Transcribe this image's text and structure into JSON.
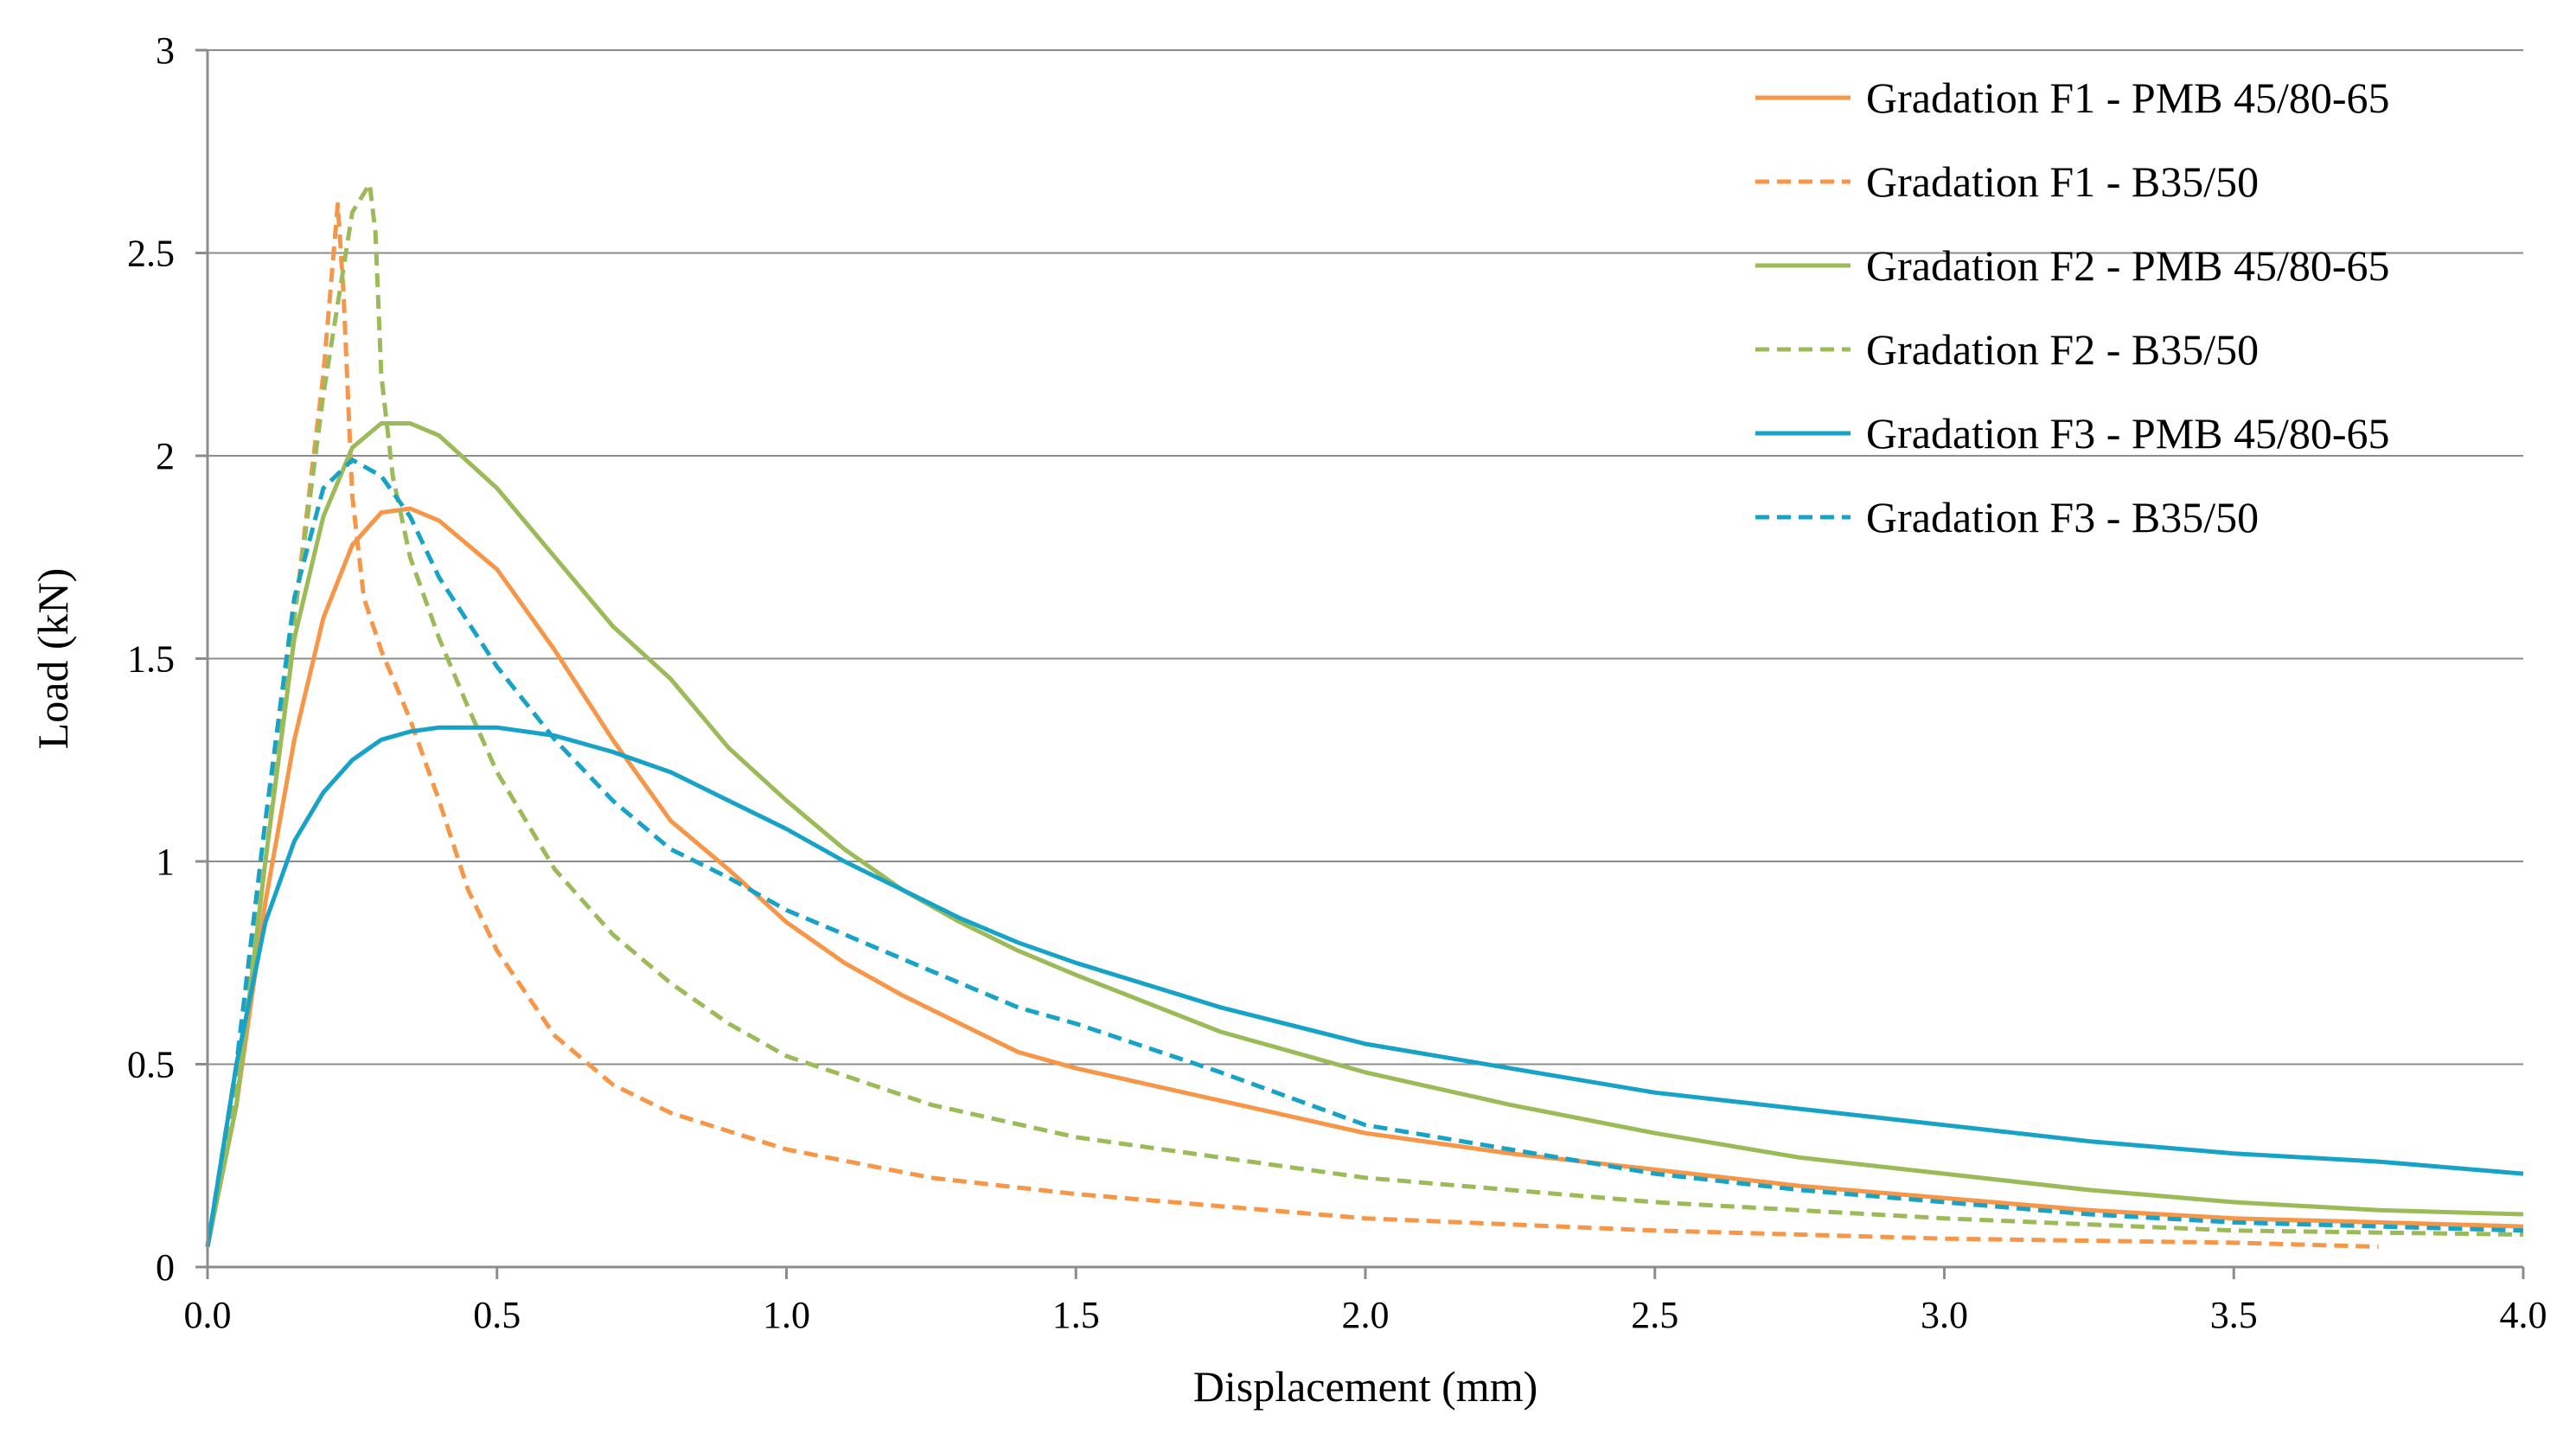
{
  "chart_data": {
    "type": "line",
    "title": "",
    "xlabel": "Displacement (mm)",
    "ylabel": "Load  (kN)",
    "xlim": [
      0,
      4.0
    ],
    "ylim": [
      0,
      3
    ],
    "x_tick_labels": [
      "0.0",
      "0.5",
      "1.0",
      "1.5",
      "2.0",
      "2.5",
      "3.0",
      "3.5",
      "4.0"
    ],
    "y_tick_labels": [
      "0",
      "0.5",
      "1",
      "1.5",
      "2",
      "2.5",
      "3"
    ],
    "grid": "horizontal",
    "legend_position": "top-right",
    "series": [
      {
        "name": "Gradation F1 - PMB  45/80-65",
        "color": "#F79646",
        "dash": "solid",
        "points": [
          [
            0,
            0.05
          ],
          [
            0.05,
            0.4
          ],
          [
            0.1,
            0.9
          ],
          [
            0.15,
            1.3
          ],
          [
            0.2,
            1.6
          ],
          [
            0.25,
            1.78
          ],
          [
            0.3,
            1.86
          ],
          [
            0.35,
            1.87
          ],
          [
            0.4,
            1.84
          ],
          [
            0.5,
            1.72
          ],
          [
            0.6,
            1.52
          ],
          [
            0.7,
            1.3
          ],
          [
            0.8,
            1.1
          ],
          [
            0.9,
            0.98
          ],
          [
            1.0,
            0.85
          ],
          [
            1.1,
            0.75
          ],
          [
            1.2,
            0.67
          ],
          [
            1.3,
            0.6
          ],
          [
            1.4,
            0.53
          ],
          [
            1.5,
            0.49
          ],
          [
            1.75,
            0.41
          ],
          [
            2.0,
            0.33
          ],
          [
            2.25,
            0.28
          ],
          [
            2.5,
            0.24
          ],
          [
            2.75,
            0.2
          ],
          [
            3.0,
            0.17
          ],
          [
            3.25,
            0.14
          ],
          [
            3.5,
            0.12
          ],
          [
            3.75,
            0.11
          ],
          [
            4.0,
            0.1
          ]
        ]
      },
      {
        "name": "Gradation F1 - B35/50",
        "color": "#F79646",
        "dash": "dashed",
        "points": [
          [
            0,
            0.05
          ],
          [
            0.05,
            0.5
          ],
          [
            0.1,
            1.0
          ],
          [
            0.15,
            1.6
          ],
          [
            0.2,
            2.2
          ],
          [
            0.225,
            2.62
          ],
          [
            0.235,
            2.4
          ],
          [
            0.25,
            1.9
          ],
          [
            0.27,
            1.65
          ],
          [
            0.3,
            1.52
          ],
          [
            0.35,
            1.35
          ],
          [
            0.4,
            1.15
          ],
          [
            0.45,
            0.93
          ],
          [
            0.5,
            0.78
          ],
          [
            0.6,
            0.57
          ],
          [
            0.7,
            0.45
          ],
          [
            0.8,
            0.38
          ],
          [
            1.0,
            0.29
          ],
          [
            1.25,
            0.22
          ],
          [
            1.5,
            0.18
          ],
          [
            1.75,
            0.15
          ],
          [
            2.0,
            0.12
          ],
          [
            2.5,
            0.09
          ],
          [
            3.0,
            0.07
          ],
          [
            3.5,
            0.06
          ],
          [
            3.75,
            0.05
          ]
        ]
      },
      {
        "name": "Gradation F2 - PMB  45/80-65",
        "color": "#9BBB59",
        "dash": "solid",
        "points": [
          [
            0,
            0.05
          ],
          [
            0.05,
            0.4
          ],
          [
            0.1,
            1.0
          ],
          [
            0.15,
            1.55
          ],
          [
            0.2,
            1.85
          ],
          [
            0.25,
            2.02
          ],
          [
            0.3,
            2.08
          ],
          [
            0.35,
            2.08
          ],
          [
            0.4,
            2.05
          ],
          [
            0.5,
            1.92
          ],
          [
            0.6,
            1.75
          ],
          [
            0.7,
            1.58
          ],
          [
            0.8,
            1.45
          ],
          [
            0.9,
            1.28
          ],
          [
            1.0,
            1.15
          ],
          [
            1.1,
            1.03
          ],
          [
            1.2,
            0.93
          ],
          [
            1.3,
            0.85
          ],
          [
            1.4,
            0.78
          ],
          [
            1.5,
            0.72
          ],
          [
            1.75,
            0.58
          ],
          [
            2.0,
            0.48
          ],
          [
            2.25,
            0.4
          ],
          [
            2.5,
            0.33
          ],
          [
            2.75,
            0.27
          ],
          [
            3.0,
            0.23
          ],
          [
            3.25,
            0.19
          ],
          [
            3.5,
            0.16
          ],
          [
            3.75,
            0.14
          ],
          [
            4.0,
            0.13
          ]
        ]
      },
      {
        "name": "Gradation F2 - B35/50",
        "color": "#9BBB59",
        "dash": "dashed",
        "points": [
          [
            0,
            0.05
          ],
          [
            0.05,
            0.45
          ],
          [
            0.1,
            1.0
          ],
          [
            0.15,
            1.6
          ],
          [
            0.2,
            2.15
          ],
          [
            0.25,
            2.6
          ],
          [
            0.28,
            2.67
          ],
          [
            0.29,
            2.55
          ],
          [
            0.3,
            2.2
          ],
          [
            0.32,
            1.95
          ],
          [
            0.35,
            1.75
          ],
          [
            0.4,
            1.55
          ],
          [
            0.45,
            1.38
          ],
          [
            0.5,
            1.22
          ],
          [
            0.6,
            0.98
          ],
          [
            0.7,
            0.82
          ],
          [
            0.8,
            0.7
          ],
          [
            0.9,
            0.6
          ],
          [
            1.0,
            0.52
          ],
          [
            1.25,
            0.4
          ],
          [
            1.5,
            0.32
          ],
          [
            1.75,
            0.27
          ],
          [
            2.0,
            0.22
          ],
          [
            2.5,
            0.16
          ],
          [
            3.0,
            0.12
          ],
          [
            3.5,
            0.09
          ],
          [
            4.0,
            0.08
          ]
        ]
      },
      {
        "name": "Gradation F3 - PMB  45/80-65",
        "color": "#17A3C8",
        "dash": "solid",
        "points": [
          [
            0,
            0.05
          ],
          [
            0.05,
            0.5
          ],
          [
            0.1,
            0.85
          ],
          [
            0.15,
            1.05
          ],
          [
            0.2,
            1.17
          ],
          [
            0.25,
            1.25
          ],
          [
            0.3,
            1.3
          ],
          [
            0.35,
            1.32
          ],
          [
            0.4,
            1.33
          ],
          [
            0.5,
            1.33
          ],
          [
            0.6,
            1.31
          ],
          [
            0.7,
            1.27
          ],
          [
            0.8,
            1.22
          ],
          [
            0.9,
            1.15
          ],
          [
            1.0,
            1.08
          ],
          [
            1.1,
            1.0
          ],
          [
            1.2,
            0.93
          ],
          [
            1.3,
            0.86
          ],
          [
            1.4,
            0.8
          ],
          [
            1.5,
            0.75
          ],
          [
            1.75,
            0.64
          ],
          [
            2.0,
            0.55
          ],
          [
            2.25,
            0.49
          ],
          [
            2.5,
            0.43
          ],
          [
            2.75,
            0.39
          ],
          [
            3.0,
            0.35
          ],
          [
            3.25,
            0.31
          ],
          [
            3.5,
            0.28
          ],
          [
            3.75,
            0.26
          ],
          [
            4.0,
            0.23
          ]
        ]
      },
      {
        "name": "Gradation F3 - B35/50",
        "color": "#17A3C8",
        "dash": "dashed",
        "points": [
          [
            0,
            0.05
          ],
          [
            0.05,
            0.5
          ],
          [
            0.1,
            1.1
          ],
          [
            0.15,
            1.65
          ],
          [
            0.2,
            1.92
          ],
          [
            0.25,
            1.99
          ],
          [
            0.3,
            1.95
          ],
          [
            0.35,
            1.85
          ],
          [
            0.4,
            1.7
          ],
          [
            0.5,
            1.48
          ],
          [
            0.6,
            1.3
          ],
          [
            0.7,
            1.15
          ],
          [
            0.8,
            1.03
          ],
          [
            0.9,
            0.96
          ],
          [
            1.0,
            0.88
          ],
          [
            1.1,
            0.82
          ],
          [
            1.2,
            0.76
          ],
          [
            1.3,
            0.7
          ],
          [
            1.4,
            0.64
          ],
          [
            1.5,
            0.6
          ],
          [
            1.75,
            0.48
          ],
          [
            2.0,
            0.35
          ],
          [
            2.25,
            0.29
          ],
          [
            2.5,
            0.23
          ],
          [
            2.75,
            0.19
          ],
          [
            3.0,
            0.16
          ],
          [
            3.25,
            0.13
          ],
          [
            3.5,
            0.11
          ],
          [
            3.75,
            0.1
          ],
          [
            4.0,
            0.09
          ]
        ]
      }
    ]
  }
}
